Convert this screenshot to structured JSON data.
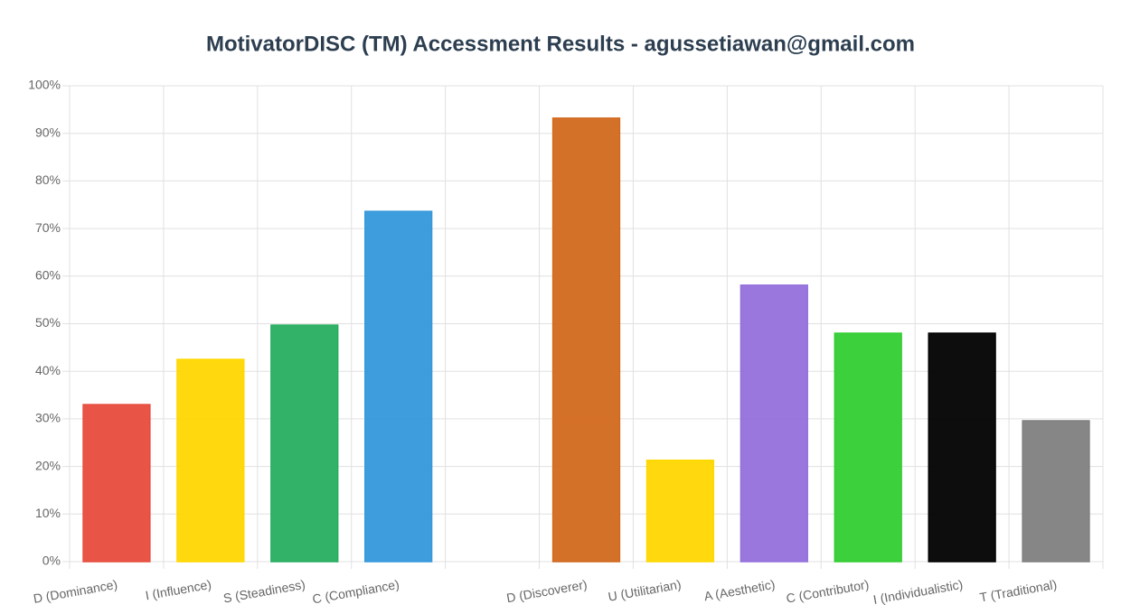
{
  "chart_data": {
    "type": "bar",
    "title": "MotivatorDISC (TM) Accessment Results - agussetiawan@gmail.com",
    "categories": [
      "D (Dominance)",
      "I (Influence)",
      "S (Steadiness)",
      "C (Compliance)",
      null,
      "D (Discoverer)",
      "U (Utilitarian)",
      "A (Aesthetic)",
      "C (Contributor)",
      "I (Individualistic)",
      "T (Traditional)"
    ],
    "values": [
      33,
      42.5,
      49.7,
      73.6,
      null,
      93.2,
      21.3,
      58.1,
      48,
      48,
      29.6
    ],
    "colors": [
      "#e74c3c",
      "#ffd700",
      "#27ae60",
      "#3498db",
      null,
      "#d2691e",
      "#ffd700",
      "#9370db",
      "#32cd32",
      "#000000",
      "#808080"
    ],
    "ylim": [
      0,
      100
    ],
    "yticks": [
      {
        "value": 0,
        "label": "0%"
      },
      {
        "value": 10,
        "label": "10%"
      },
      {
        "value": 20,
        "label": "20%"
      },
      {
        "value": 30,
        "label": "30%"
      },
      {
        "value": 40,
        "label": "40%"
      },
      {
        "value": 50,
        "label": "50%"
      },
      {
        "value": 60,
        "label": "60%"
      },
      {
        "value": 70,
        "label": "70%"
      },
      {
        "value": 80,
        "label": "80%"
      },
      {
        "value": 90,
        "label": "90%"
      },
      {
        "value": 100,
        "label": "100%"
      }
    ],
    "grid": true
  }
}
